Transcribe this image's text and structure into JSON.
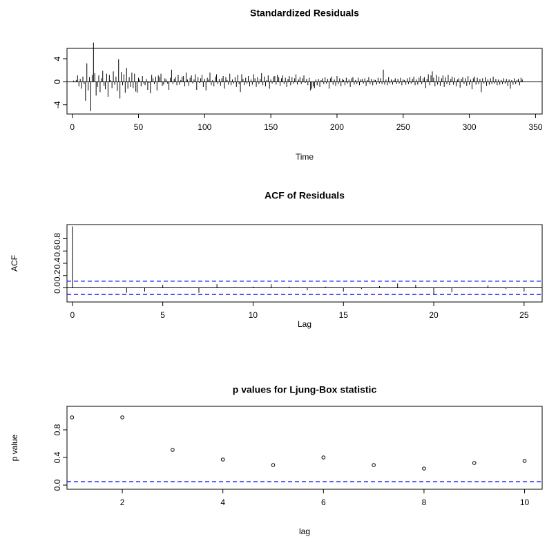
{
  "chart_data": [
    {
      "type": "spike",
      "title": "Standardized Residuals",
      "xlabel": "Time",
      "color": "#000000",
      "values": [
        0.2,
        -0.1,
        0.3,
        1.1,
        -0.8,
        0.5,
        -1.2,
        0.9,
        -0.4,
        -3.3,
        3.2,
        -1.5,
        0.8,
        -5.1,
        1.2,
        6.8,
        1.5,
        -2.4,
        -0.9,
        1.1,
        -1.8,
        0.6,
        1.9,
        -0.7,
        -1.3,
        1.4,
        -2.6,
        1.2,
        0.3,
        -1.1,
        1.8,
        -0.5,
        0.9,
        -1.6,
        3.9,
        -2.9,
        1.7,
        -0.6,
        1.3,
        -1.9,
        2.4,
        -1.2,
        0.8,
        -0.9,
        1.6,
        -1.1,
        1.4,
        -1.7,
        -1.9,
        0.7,
        0.4,
        -0.8,
        1.0,
        -0.3,
        -0.6,
        0.5,
        -1.4,
        -0.2,
        -2.0,
        1.2,
        0.6,
        -0.4,
        0.9,
        -1.5,
        1.1,
        0.8,
        1.4,
        -0.7,
        -0.5,
        0.6,
        0.4,
        -0.3,
        -1.4,
        0.7,
        2.1,
        -0.4,
        0.5,
        0.8,
        -0.6,
        1.2,
        -0.5,
        0.3,
        0.9,
        1.0,
        -0.8,
        1.6,
        0.4,
        -0.7,
        0.7,
        1.1,
        -0.3,
        0.4,
        1.3,
        -1.4,
        0.8,
        -0.2,
        0.6,
        1.2,
        -0.9,
        0.5,
        -1.5,
        0.7,
        0.4,
        1.6,
        -0.6,
        0.3,
        -0.8,
        0.9,
        1.3,
        -0.4,
        0.5,
        -0.7,
        0.6,
        1.0,
        -1.2,
        0.8,
        0.3,
        -0.5,
        1.4,
        -0.6,
        0.4,
        -0.3,
        0.8,
        -0.9,
        1.2,
        -0.4,
        -1.8,
        1.3,
        0.5,
        -0.6,
        0.7,
        -0.3,
        1.0,
        -0.8,
        0.4,
        -0.5,
        1.3,
        0.6,
        -0.9,
        0.8,
        -0.4,
        0.5,
        1.5,
        -0.6,
        0.9,
        -0.8,
        0.3,
        1.1,
        -1.2,
        0.4,
        -0.3,
        0.9,
        1.0,
        -0.5,
        1.2,
        0.8,
        -0.7,
        0.6,
        1.1,
        -0.4,
        0.7,
        -0.9,
        0.5,
        1.0,
        -0.6,
        0.8,
        -0.3,
        0.6,
        1.3,
        -0.5,
        0.4,
        0.8,
        -0.4,
        0.6,
        1.1,
        -0.2,
        0.5,
        -0.6,
        0.7,
        -1.5,
        -1.2,
        -0.8,
        -1.1,
        0.4,
        -0.6,
        0.5,
        -0.9,
        0.3,
        0.6,
        -0.4,
        0.8,
        -0.3,
        0.5,
        -1.2,
        0.6,
        0.9,
        -0.5,
        0.4,
        -0.7,
        1.0,
        -0.4,
        0.6,
        -0.8,
        0.5,
        0.3,
        -0.6,
        0.7,
        -0.3,
        0.4,
        -0.9,
        0.6,
        0.8,
        -0.5,
        0.3,
        -0.4,
        0.7,
        -0.6,
        0.4,
        0.5,
        -0.3,
        0.6,
        -0.7,
        0.3,
        0.8,
        -0.4,
        0.5,
        -0.6,
        0.4,
        0.3,
        -0.5,
        0.7,
        -0.3,
        0.6,
        -0.4,
        2.1,
        -0.5,
        0.4,
        -0.6,
        0.8,
        -0.3,
        0.4,
        -0.5,
        0.3,
        0.6,
        -0.4,
        0.5,
        -0.3,
        0.7,
        -0.6,
        0.4,
        0.3,
        -0.5,
        0.6,
        -0.4,
        0.8,
        -0.3,
        0.5,
        0.9,
        -0.6,
        0.4,
        -0.5,
        0.7,
        1.0,
        -0.4,
        0.6,
        0.8,
        -1.1,
        0.5,
        1.3,
        -0.6,
        1.1,
        1.8,
        0.7,
        -0.8,
        1.2,
        -0.5,
        0.9,
        -0.7,
        0.6,
        1.1,
        -0.9,
        0.8,
        -0.4,
        1.2,
        -0.6,
        0.5,
        0.9,
        -0.5,
        0.7,
        -0.8,
        0.4,
        0.6,
        -1.0,
        0.5,
        0.8,
        -0.4,
        0.6,
        -0.7,
        1.0,
        -0.5,
        0.4,
        -1.3,
        0.6,
        0.9,
        -0.5,
        0.7,
        -0.4,
        0.5,
        -1.8,
        0.6,
        -0.3,
        0.8,
        -0.7,
        0.4,
        -0.5,
        0.6,
        -0.4,
        0.9,
        -0.3,
        0.5,
        -0.6,
        0.4,
        -0.5,
        0.3,
        -0.4,
        0.6,
        -0.3,
        0.5,
        -0.7,
        0.4,
        -1.2,
        0.3,
        -0.5,
        0.6,
        -0.4,
        0.3,
        0.5,
        -0.6,
        0.7,
        0.4
      ],
      "xlim": [
        -4,
        355
      ],
      "xticks": [
        0,
        50,
        100,
        150,
        200,
        250,
        300,
        350
      ],
      "ylim": [
        -5.6,
        5.8
      ],
      "yticks": [
        -4,
        0,
        4
      ]
    },
    {
      "type": "spike",
      "title": "ACF of Residuals",
      "xlabel": "Lag",
      "ylabel": "ACF",
      "color": "#000000",
      "x": [
        0,
        1,
        2,
        3,
        4,
        5,
        6,
        7,
        8,
        9,
        10,
        11,
        12,
        13,
        14,
        15,
        16,
        17,
        18,
        19,
        20,
        21,
        22,
        23,
        24,
        25
      ],
      "values": [
        1,
        0.01,
        0.01,
        -0.08,
        -0.06,
        0.05,
        0.01,
        -0.08,
        0.06,
        0.01,
        0.02,
        0.06,
        0.02,
        -0.04,
        0.02,
        -0.06,
        -0.02,
        0.03,
        0.07,
        0.05,
        -0.1,
        -0.07,
        0.01,
        0.04,
        -0.02,
        -0.06
      ],
      "xlim": [
        -0.3,
        26
      ],
      "xticks": [
        0,
        5,
        10,
        15,
        20,
        25
      ],
      "ylim": [
        -0.23,
        1.03
      ],
      "yticks": [
        {
          "value": 0,
          "label": "0.0"
        },
        0.2,
        0.4,
        0.6,
        0.8
      ],
      "ref_lines": [
        0.108,
        -0.108
      ],
      "ref_color": "#0000ff"
    },
    {
      "type": "scatter",
      "title": "p values for Ljung-Box statistic",
      "xlabel": "lag",
      "ylabel": "p value",
      "color": "#000000",
      "x": [
        1,
        2,
        3,
        4,
        5,
        6,
        7,
        8,
        9,
        10
      ],
      "values": [
        0.98,
        0.98,
        0.51,
        0.37,
        0.29,
        0.4,
        0.29,
        0.24,
        0.32,
        0.35
      ],
      "xlim": [
        0.9,
        10.35
      ],
      "xticks": [
        2,
        4,
        6,
        8,
        10
      ],
      "ylim": [
        -0.06,
        1.14
      ],
      "yticks": [
        {
          "value": 0,
          "label": "0.0"
        },
        0.4,
        0.8
      ],
      "ref_lines": [
        0.05
      ],
      "ref_color": "#0000ff"
    }
  ]
}
